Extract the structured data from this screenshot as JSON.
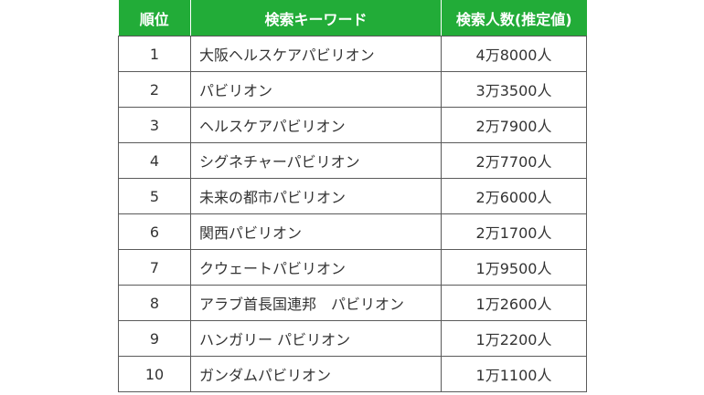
{
  "table": {
    "header_color": "#22ac38",
    "columns": [
      {
        "key": "rank",
        "label": "順位"
      },
      {
        "key": "keyword",
        "label": "検索キーワード"
      },
      {
        "key": "count",
        "label": "検索人数(推定値)"
      }
    ],
    "rows": [
      {
        "rank": "1",
        "keyword": "大阪ヘルスケアパビリオン",
        "count": "4万8000人"
      },
      {
        "rank": "2",
        "keyword": "パビリオン",
        "count": "3万3500人"
      },
      {
        "rank": "3",
        "keyword": "ヘルスケアパビリオン",
        "count": "2万7900人"
      },
      {
        "rank": "4",
        "keyword": "シグネチャーパビリオン",
        "count": "2万7700人"
      },
      {
        "rank": "5",
        "keyword": "未来の都市パビリオン",
        "count": "2万6000人"
      },
      {
        "rank": "6",
        "keyword": "関西パビリオン",
        "count": "2万1700人"
      },
      {
        "rank": "7",
        "keyword": "クウェートパビリオン",
        "count": "1万9500人"
      },
      {
        "rank": "8",
        "keyword": "アラブ首長国連邦　パビリオン",
        "count": "1万2600人"
      },
      {
        "rank": "9",
        "keyword": "ハンガリー パビリオン",
        "count": "1万2200人"
      },
      {
        "rank": "10",
        "keyword": "ガンダムパビリオン",
        "count": "1万1100人"
      }
    ]
  }
}
